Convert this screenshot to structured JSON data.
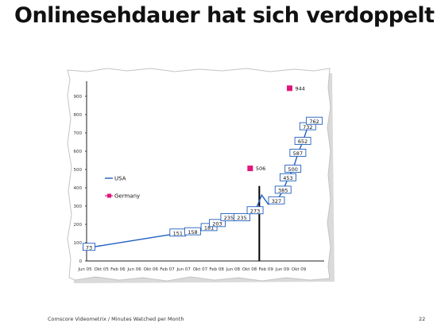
{
  "slide": {
    "title": "Onlinesehdauer hat sich verdoppelt!",
    "footer": "Comscore Videometrix / Minutes Watched per Month",
    "page_number": "22"
  },
  "colors": {
    "usa": "#1f5fbf",
    "germany": "#e0157a",
    "axis": "#222222",
    "marker_line": "#000000"
  },
  "chart_data": {
    "type": "line",
    "title": "",
    "xlabel": "",
    "ylabel": "",
    "categories": [
      "Jun 05",
      "Okt 05",
      "Feb 06",
      "Jun 06",
      "Okt 06",
      "Feb 07",
      "Jun 07",
      "Okt 07",
      "Feb 08",
      "Jun 08",
      "Okt 08",
      "Feb 09",
      "Jun 09",
      "Okt 09"
    ],
    "y_ticks": [
      "0",
      "100",
      "200",
      "300",
      "400",
      "500",
      "600",
      "700",
      "800",
      "900"
    ],
    "ylim": [
      0,
      1000
    ],
    "grid": false,
    "legend_placement": "left",
    "series": [
      {
        "name": "USA",
        "points": [
          {
            "x": 0,
            "y": 73,
            "label": "73"
          },
          {
            "x": 5.4,
            "y": 151,
            "label": "151"
          },
          {
            "x": 6.3,
            "y": 158,
            "label": "158"
          },
          {
            "x": 7.3,
            "y": 181,
            "label": "181"
          },
          {
            "x": 7.8,
            "y": 203,
            "label": "203"
          },
          {
            "x": 8.5,
            "y": 235,
            "label": "235"
          },
          {
            "x": 9.3,
            "y": 235,
            "label": "235"
          },
          {
            "x": 10.1,
            "y": 273,
            "label": "273"
          },
          {
            "x": 10.5,
            "y": 360,
            "label": ""
          },
          {
            "x": 10.9,
            "y": 310,
            "label": ""
          },
          {
            "x": 11.4,
            "y": 327,
            "label": "327"
          },
          {
            "x": 11.8,
            "y": 385,
            "label": "385"
          },
          {
            "x": 12.1,
            "y": 453,
            "label": "453"
          },
          {
            "x": 12.4,
            "y": 500,
            "label": "500"
          },
          {
            "x": 12.7,
            "y": 587,
            "label": "587"
          },
          {
            "x": 13.0,
            "y": 652,
            "label": "652"
          },
          {
            "x": 13.3,
            "y": 732,
            "label": "732"
          },
          {
            "x": 13.7,
            "y": 762,
            "label": "762"
          }
        ]
      },
      {
        "name": "Germany",
        "points": [
          {
            "x": 9.8,
            "y": 506,
            "label": "506"
          },
          {
            "x": 12.2,
            "y": 944,
            "label": "944"
          }
        ]
      }
    ],
    "annotations": [
      {
        "type": "vertical_line",
        "x": 10.5,
        "y_from": 0,
        "y_to": 410
      }
    ]
  }
}
